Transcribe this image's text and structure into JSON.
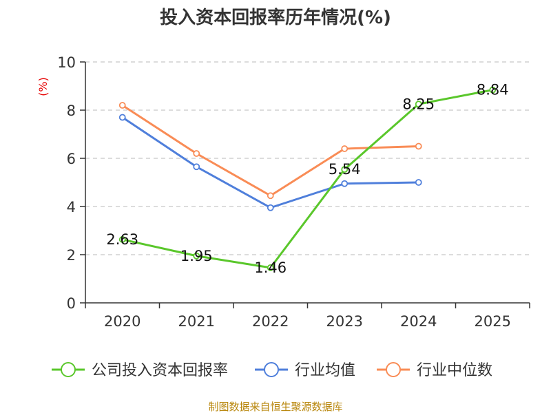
{
  "chart_data": {
    "type": "line",
    "title": "投入资本回报率历年情况(%)",
    "unit": "(%)",
    "categories": [
      "2020",
      "2021",
      "2022",
      "2023",
      "2024",
      "2025"
    ],
    "ylim": [
      0,
      10
    ],
    "yticks": [
      "0",
      "2",
      "4",
      "6",
      "8",
      "10"
    ],
    "grid": true,
    "legend_position": "bottom",
    "series": [
      {
        "name": "公司投入资本回报率",
        "color": "#5ac72b",
        "values": [
          2.63,
          1.95,
          1.46,
          5.54,
          8.25,
          8.84
        ],
        "labels": [
          "2.63",
          "1.95",
          "1.46",
          "5.54",
          "8.25",
          "8.84"
        ]
      },
      {
        "name": "行业均值",
        "color": "#4f7fdb",
        "values": [
          7.7,
          5.65,
          3.95,
          4.95,
          5.0,
          null
        ]
      },
      {
        "name": "行业中位数",
        "color": "#f98c56",
        "values": [
          8.2,
          6.2,
          4.45,
          6.4,
          6.5,
          null
        ]
      }
    ]
  },
  "source": "制图数据来自恒生聚源数据库"
}
